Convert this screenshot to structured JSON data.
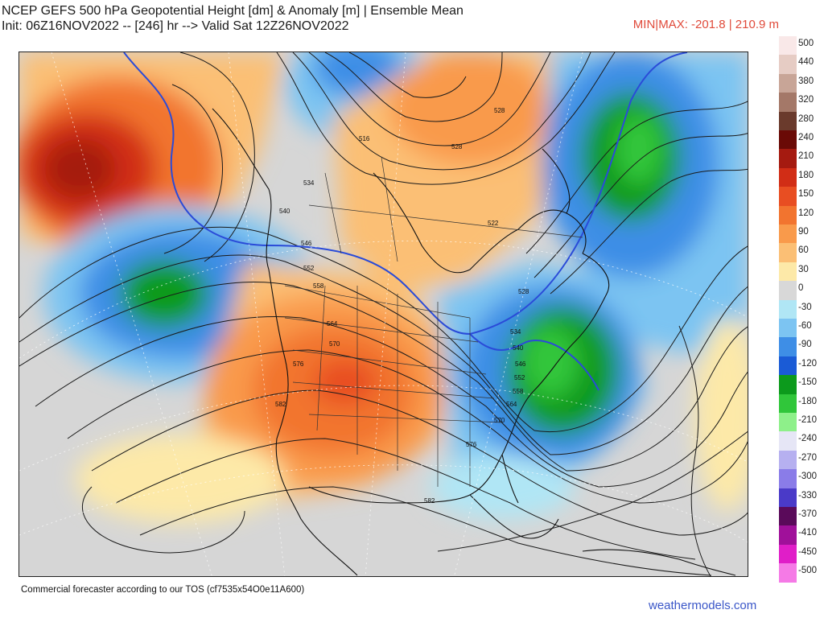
{
  "header": {
    "title_line1": "NCEP GEFS 500 hPa Geopotential Height [dm] & Anomaly [m] | Ensemble Mean",
    "title_line2": "Init: 06Z16NOV2022 -- [246] hr --> Valid Sat 12Z26NOV2022",
    "minmax": "MIN|MAX: -201.8 | 210.9 m"
  },
  "footer": {
    "tos": "Commercial forecaster according to our TOS (cf7535x54O0e11A600)",
    "brand": "weathermodels.com"
  },
  "contour_labels": [
    "528",
    "516",
    "528",
    "534",
    "540",
    "546",
    "552",
    "558",
    "564",
    "570",
    "576",
    "582",
    "522",
    "528",
    "534",
    "540",
    "546",
    "552",
    "558",
    "564",
    "570",
    "576",
    "582"
  ],
  "legend": [
    {
      "label": "500",
      "color": "#f9e8e8"
    },
    {
      "label": "440",
      "color": "#e6ccc4"
    },
    {
      "label": "380",
      "color": "#c8a597"
    },
    {
      "label": "320",
      "color": "#a47868"
    },
    {
      "label": "280",
      "color": "#6a3a2c"
    },
    {
      "label": "240",
      "color": "#6a0a06"
    },
    {
      "label": "210",
      "color": "#a51a10"
    },
    {
      "label": "180",
      "color": "#d12d16"
    },
    {
      "label": "150",
      "color": "#e84e22"
    },
    {
      "label": "120",
      "color": "#f2742f"
    },
    {
      "label": "90",
      "color": "#f99a4b"
    },
    {
      "label": "60",
      "color": "#fbbf75"
    },
    {
      "label": "30",
      "color": "#fde9a8"
    },
    {
      "label": "0",
      "color": "#d8d8d8"
    },
    {
      "label": "-30",
      "color": "#b0e6f5"
    },
    {
      "label": "-60",
      "color": "#7cc4f2"
    },
    {
      "label": "-90",
      "color": "#3e8ee6"
    },
    {
      "label": "-120",
      "color": "#1a5bd6"
    },
    {
      "label": "-150",
      "color": "#0c9a1c"
    },
    {
      "label": "-180",
      "color": "#30c63a"
    },
    {
      "label": "-210",
      "color": "#8ef08a"
    },
    {
      "label": "-240",
      "color": "#e6e6f6"
    },
    {
      "label": "-270",
      "color": "#b6b0f0"
    },
    {
      "label": "-300",
      "color": "#8a7ce8"
    },
    {
      "label": "-330",
      "color": "#4a3ac8"
    },
    {
      "label": "-370",
      "color": "#5a0a5a"
    },
    {
      "label": "-410",
      "color": "#a0109a"
    },
    {
      "label": "-450",
      "color": "#e01ec8"
    },
    {
      "label": "-500",
      "color": "#f57ae6"
    }
  ]
}
